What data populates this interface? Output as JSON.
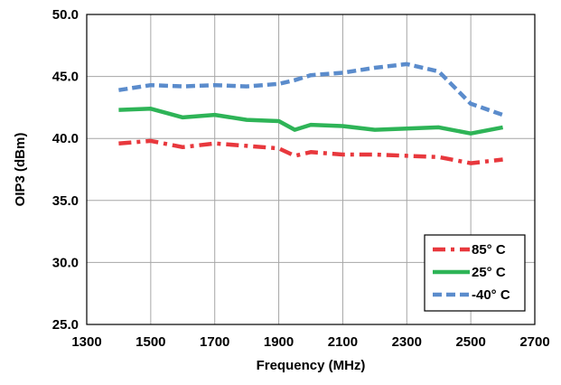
{
  "chart_data": {
    "type": "line",
    "title": "",
    "xlabel": "Frequency (MHz)",
    "ylabel": "OIP3  (dBm)",
    "xlim": [
      1300,
      2700
    ],
    "ylim": [
      25,
      50
    ],
    "xticks": [
      "1300",
      "1500",
      "1700",
      "1900",
      "2100",
      "2300",
      "2500",
      "2700"
    ],
    "yticks": [
      "25.0",
      "30.0",
      "35.0",
      "40.0",
      "45.0",
      "50.0"
    ],
    "grid": true,
    "legend_position": "bottom-right",
    "series": [
      {
        "name": "85° C",
        "color": "#e8383d",
        "style": "dash-dot",
        "x": [
          1400,
          1500,
          1600,
          1700,
          1800,
          1900,
          1950,
          2000,
          2100,
          2200,
          2300,
          2400,
          2500,
          2600
        ],
        "y": [
          39.6,
          39.8,
          39.3,
          39.6,
          39.4,
          39.2,
          38.6,
          38.9,
          38.7,
          38.7,
          38.6,
          38.5,
          38.0,
          38.3
        ]
      },
      {
        "name": "25° C",
        "color": "#2eb457",
        "style": "solid",
        "x": [
          1400,
          1500,
          1600,
          1700,
          1800,
          1900,
          1950,
          2000,
          2100,
          2200,
          2300,
          2400,
          2500,
          2600
        ],
        "y": [
          42.3,
          42.4,
          41.7,
          41.9,
          41.5,
          41.4,
          40.7,
          41.1,
          41.0,
          40.7,
          40.8,
          40.9,
          40.4,
          40.9
        ]
      },
      {
        "name": "-40° C",
        "color": "#5b8ccc",
        "style": "dashed",
        "x": [
          1400,
          1500,
          1600,
          1700,
          1800,
          1900,
          1950,
          2000,
          2100,
          2200,
          2300,
          2400,
          2500,
          2600
        ],
        "y": [
          43.9,
          44.3,
          44.2,
          44.3,
          44.2,
          44.4,
          44.7,
          45.1,
          45.3,
          45.7,
          46.0,
          45.4,
          42.8,
          41.9
        ]
      }
    ]
  }
}
